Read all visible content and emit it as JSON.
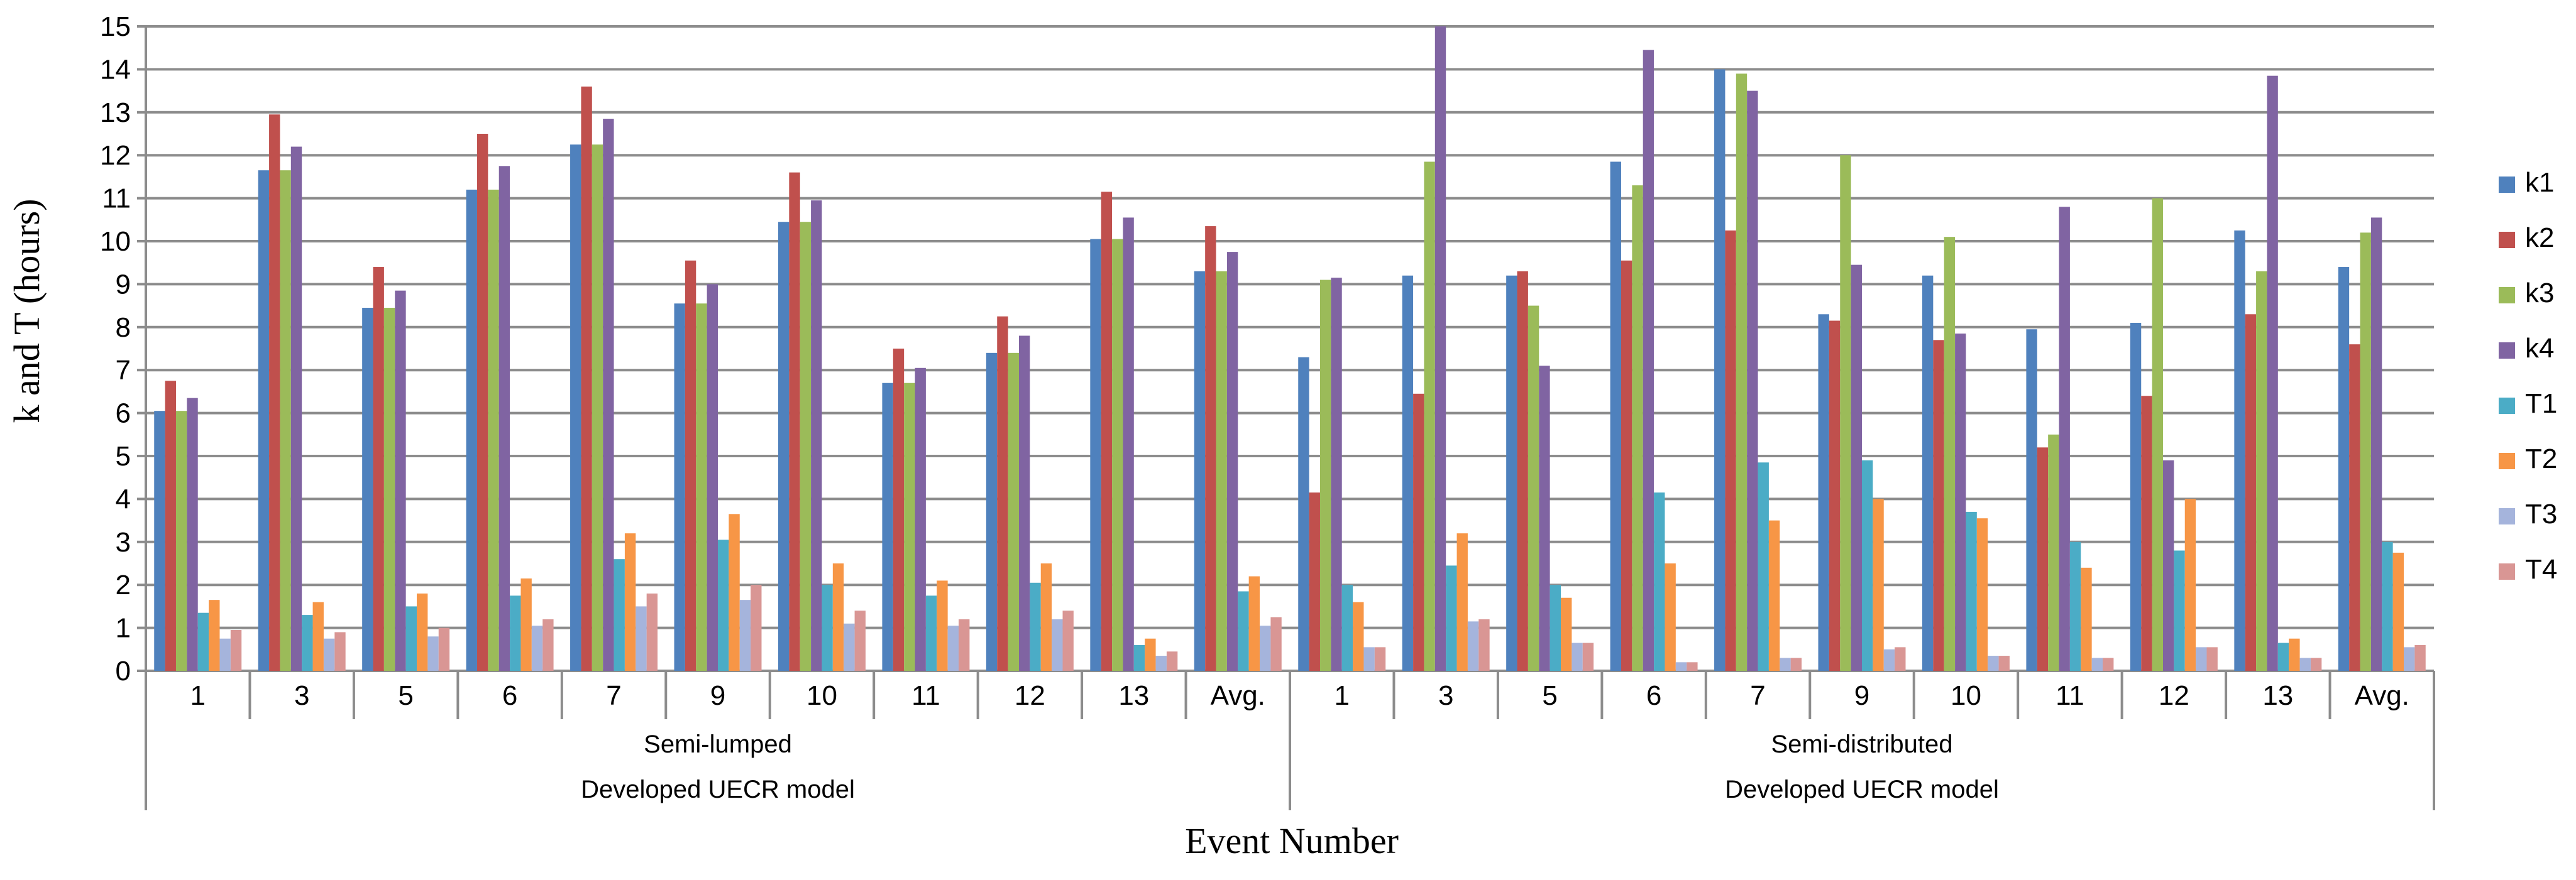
{
  "chart_data": {
    "type": "bar",
    "ylabel": "k and T (hours)",
    "xlabel": "Event Number",
    "ylim": [
      0,
      15
    ],
    "yticks": [
      0,
      1,
      2,
      3,
      4,
      5,
      6,
      7,
      8,
      9,
      10,
      11,
      12,
      13,
      14,
      15
    ],
    "grid": true,
    "legend_position": "right",
    "groups": [
      {
        "label": "Semi-lumped",
        "categories": [
          "1",
          "3",
          "5",
          "6",
          "7",
          "9",
          "10",
          "11",
          "12",
          "13",
          "Avg."
        ]
      },
      {
        "label": "Semi-distributed",
        "categories": [
          "1",
          "3",
          "5",
          "6",
          "7",
          "9",
          "10",
          "11",
          "12",
          "13",
          "Avg."
        ]
      }
    ],
    "model_labels": [
      "Developed UECR model",
      "Developed UECR model"
    ],
    "series": [
      {
        "name": "k1",
        "color": "#4F81BD",
        "values": [
          6.05,
          11.65,
          8.45,
          11.2,
          12.25,
          8.55,
          10.45,
          6.7,
          7.4,
          10.05,
          9.3,
          7.3,
          9.2,
          9.2,
          11.85,
          14.0,
          8.3,
          9.2,
          7.95,
          8.1,
          10.25,
          9.4
        ]
      },
      {
        "name": "k2",
        "color": "#C0504D",
        "values": [
          6.75,
          12.95,
          9.4,
          12.5,
          13.6,
          9.55,
          11.6,
          7.5,
          8.25,
          11.15,
          10.35,
          4.15,
          6.45,
          9.3,
          9.55,
          10.25,
          8.15,
          7.7,
          5.2,
          6.4,
          8.3,
          7.6
        ]
      },
      {
        "name": "k3",
        "color": "#9BBB59",
        "values": [
          6.05,
          11.65,
          8.45,
          11.2,
          12.25,
          8.55,
          10.45,
          6.7,
          7.4,
          10.05,
          9.3,
          9.1,
          11.85,
          8.5,
          11.3,
          13.9,
          12.0,
          10.1,
          5.5,
          11.0,
          9.3,
          10.2
        ]
      },
      {
        "name": "k4",
        "color": "#8064A2",
        "values": [
          6.35,
          12.2,
          8.85,
          11.75,
          12.85,
          9.0,
          10.95,
          7.05,
          7.8,
          10.55,
          9.75,
          9.15,
          15.0,
          7.1,
          14.45,
          13.5,
          9.45,
          7.85,
          10.8,
          4.9,
          13.85,
          10.55
        ]
      },
      {
        "name": "T1",
        "color": "#4BACC6",
        "values": [
          1.35,
          1.3,
          1.5,
          1.75,
          2.6,
          3.05,
          2.0,
          1.75,
          2.05,
          0.6,
          1.85,
          2.0,
          2.45,
          2.0,
          4.15,
          4.85,
          4.9,
          3.7,
          3.0,
          2.8,
          0.65,
          3.0
        ]
      },
      {
        "name": "T2",
        "color": "#F79646",
        "values": [
          1.65,
          1.6,
          1.8,
          2.15,
          3.2,
          3.65,
          2.5,
          2.1,
          2.5,
          0.75,
          2.2,
          1.6,
          3.2,
          1.7,
          2.5,
          3.5,
          4.0,
          3.55,
          2.4,
          4.0,
          0.75,
          2.75
        ]
      },
      {
        "name": "T3",
        "color": "#A5B4DC",
        "values": [
          0.75,
          0.75,
          0.8,
          1.05,
          1.5,
          1.65,
          1.1,
          1.05,
          1.2,
          0.35,
          1.05,
          0.55,
          1.15,
          0.65,
          0.2,
          0.3,
          0.5,
          0.35,
          0.3,
          0.55,
          0.3,
          0.55
        ]
      },
      {
        "name": "T4",
        "color": "#D99694",
        "values": [
          0.95,
          0.9,
          1.0,
          1.2,
          1.8,
          2.0,
          1.4,
          1.2,
          1.4,
          0.45,
          1.25,
          0.55,
          1.2,
          0.65,
          0.2,
          0.3,
          0.55,
          0.35,
          0.3,
          0.55,
          0.3,
          0.6
        ]
      }
    ]
  }
}
